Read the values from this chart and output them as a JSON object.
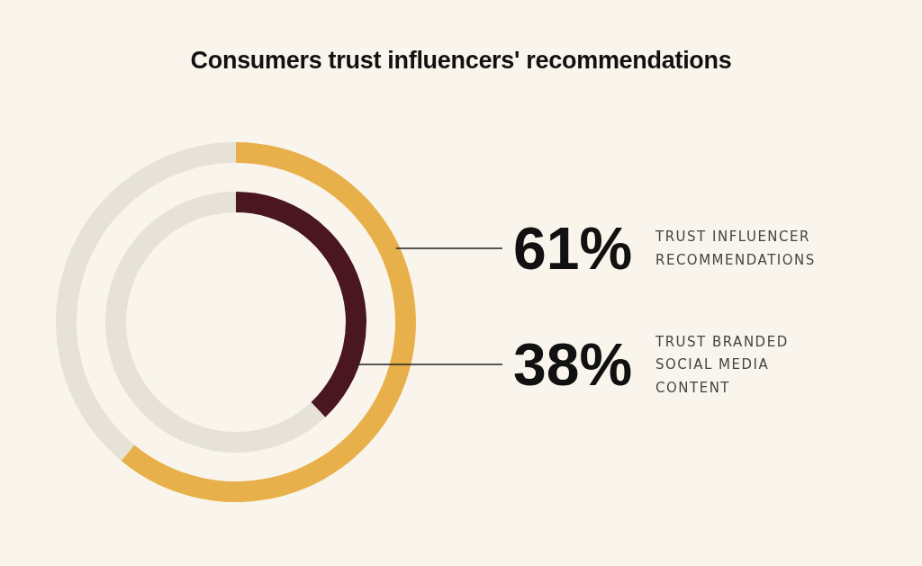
{
  "chart_data": {
    "type": "donut",
    "title": "Consumers trust influencers' recommendations",
    "categories": [
      null,
      null
    ],
    "series": [
      {
        "name": "TRUST INFLUENCER RECOMMENDATIONS",
        "values": [
          61,
          39
        ],
        "colors": [
          "#e8b04a",
          "#e7e2d8"
        ],
        "value_labels": [
          "61%",
          null
        ]
      },
      {
        "name": "TRUST BRANDED SOCIAL MEDIA CONTENT",
        "values": [
          38,
          62
        ],
        "colors": [
          "#4a1620",
          "#e7e2d8"
        ],
        "value_labels": [
          "38%",
          null
        ]
      }
    ],
    "legend": false
  }
}
